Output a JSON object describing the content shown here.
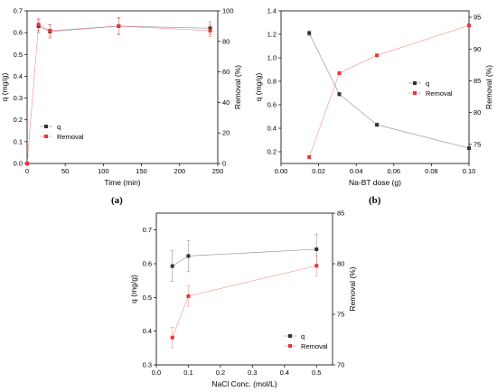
{
  "chart_data": [
    {
      "type": "scatter",
      "panel_label": "(a)",
      "xlabel": "Time (min)",
      "ylabel": "q (mg/g)",
      "y2label": "Removal (%)",
      "xlim": [
        0,
        250
      ],
      "ylim": [
        0,
        0.7
      ],
      "y2lim": [
        0,
        100
      ],
      "xticks": [
        "0",
        "50",
        "100",
        "150",
        "200",
        "250"
      ],
      "yticks": [
        "0.0",
        "0.1",
        "0.2",
        "0.3",
        "0.4",
        "0.5",
        "0.6",
        "0.7"
      ],
      "y2ticks": [
        "0",
        "20",
        "40",
        "60",
        "80",
        "100"
      ],
      "legend": [
        "q",
        "Removal"
      ],
      "legend_position": "bottom-left",
      "grid": false,
      "series": [
        {
          "name": "q",
          "axis": "left",
          "color": "#333333",
          "x": [
            15,
            30,
            120,
            240
          ],
          "y": [
            0.63,
            0.605,
            0.63,
            0.62
          ],
          "err": [
            0.03,
            0.03,
            0.04,
            0.03
          ]
        },
        {
          "name": "Removal",
          "axis": "right",
          "color": "#ee3333",
          "x": [
            0,
            15,
            30,
            120,
            240
          ],
          "y": [
            0,
            91,
            87,
            90,
            87
          ],
          "err": [
            0,
            4,
            4,
            5,
            4
          ]
        }
      ]
    },
    {
      "type": "scatter",
      "panel_label": "(b)",
      "xlabel": "Na-BT dose (g)",
      "ylabel": "q (mg/g)",
      "y2label": "Removal (%)",
      "xlim": [
        0,
        0.1
      ],
      "ylim": [
        0.1,
        1.4
      ],
      "y2lim": [
        72,
        96
      ],
      "xticks": [
        "0.00",
        "0.02",
        "0.04",
        "0.06",
        "0.08",
        "0.10"
      ],
      "yticks": [
        "0.2",
        "0.4",
        "0.6",
        "0.8",
        "1.0",
        "1.2",
        "1.4"
      ],
      "y2ticks": [
        "75",
        "80",
        "85",
        "90",
        "95"
      ],
      "legend": [
        "q",
        "Removal"
      ],
      "legend_position": "center-right",
      "grid": false,
      "series": [
        {
          "name": "q",
          "axis": "left",
          "color": "#333333",
          "x": [
            0.015,
            0.031,
            0.051,
            0.1
          ],
          "y": [
            1.21,
            0.69,
            0.43,
            0.23
          ],
          "err": [
            0.02,
            0.015,
            0.015,
            0.01
          ]
        },
        {
          "name": "Removal",
          "axis": "right",
          "color": "#ee3333",
          "x": [
            0.015,
            0.031,
            0.051,
            0.1
          ],
          "y": [
            73,
            86.2,
            89,
            93.7
          ],
          "err": [
            0,
            0,
            0,
            0
          ]
        }
      ]
    },
    {
      "type": "scatter",
      "panel_label": "",
      "xlabel": "NaCl Conc. (mol/L)",
      "ylabel": "q (mg/g)",
      "y2label": "Removal (%)",
      "xlim": [
        0,
        0.55
      ],
      "ylim": [
        0.3,
        0.75
      ],
      "y2lim": [
        70,
        85
      ],
      "xticks": [
        "0.0",
        "0.1",
        "0.2",
        "0.3",
        "0.4",
        "0.5"
      ],
      "yticks": [
        "0.3",
        "0.4",
        "0.5",
        "0.6",
        "0.7"
      ],
      "y2ticks": [
        "70",
        "75",
        "80",
        "85"
      ],
      "legend": [
        "q",
        "Removal"
      ],
      "legend_position": "bottom-right",
      "grid": false,
      "series": [
        {
          "name": "q",
          "axis": "left",
          "color": "#333333",
          "x": [
            0.05,
            0.1,
            0.5
          ],
          "y": [
            0.593,
            0.623,
            0.643
          ],
          "err": [
            0.045,
            0.045,
            0.045
          ]
        },
        {
          "name": "Removal",
          "axis": "right",
          "color": "#ee3333",
          "x": [
            0.05,
            0.1,
            0.5
          ],
          "y": [
            72.7,
            76.8,
            79.8
          ],
          "err": [
            1.0,
            1.0,
            1.0
          ]
        }
      ]
    }
  ]
}
